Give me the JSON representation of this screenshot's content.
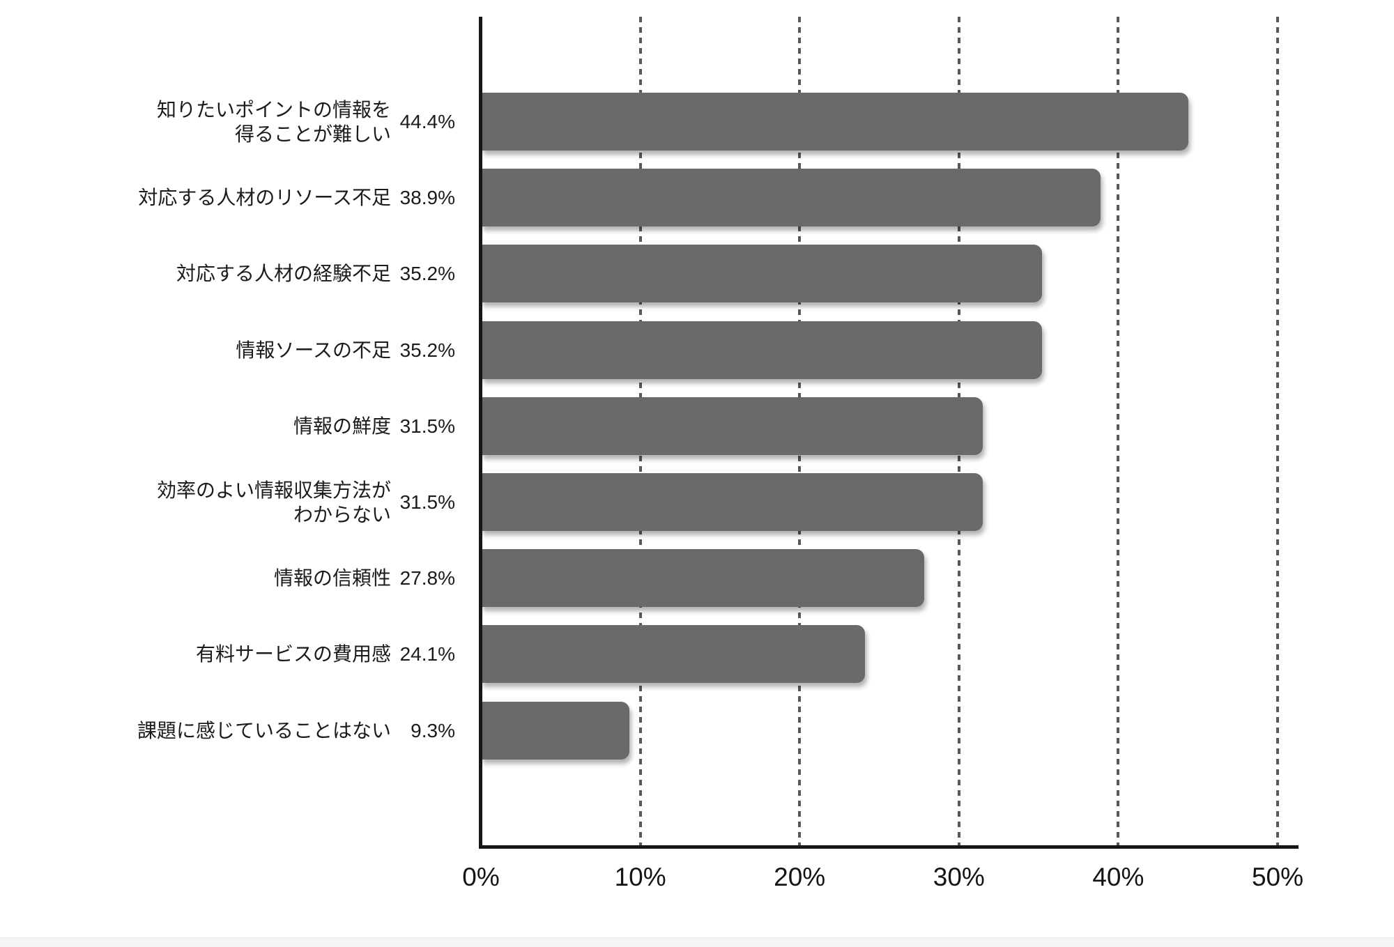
{
  "chart_data": {
    "type": "bar",
    "orientation": "horizontal",
    "title": "",
    "xlabel": "",
    "ylabel": "",
    "xlim": [
      0,
      50
    ],
    "grid": "vertical-dashed",
    "legend": "none",
    "bar_color": "#6a6a6a",
    "categories": [
      "知りたいポイントの情報を得ることが難しい",
      "対応する人材のリソース不足",
      "対応する人材の経験不足",
      "情報ソースの不足",
      "情報の鮮度",
      "効率のよい情報収集方法がわからない",
      "情報の信頼性",
      "有料サービスの費用感",
      "課題に感じていることはない"
    ],
    "categories_display": [
      "知りたいポイントの情報を\n得ることが難しい",
      "対応する人材のリソース不足",
      "対応する人材の経験不足",
      "情報ソースの不足",
      "情報の鮮度",
      "効率のよい情報収集方法が\nわからない",
      "情報の信頼性",
      "有料サービスの費用感",
      "課題に感じていることはない"
    ],
    "values": [
      44.4,
      38.9,
      35.2,
      35.2,
      31.5,
      31.5,
      27.8,
      24.1,
      9.3
    ],
    "value_labels": [
      "44.4%",
      "38.9%",
      "35.2%",
      "35.2%",
      "31.5%",
      "31.5%",
      "27.8%",
      "24.1%",
      "9.3%"
    ],
    "x_tick_values": [
      0,
      10,
      20,
      30,
      40,
      50
    ],
    "x_tick_labels": [
      "0%",
      "10%",
      "20%",
      "30%",
      "40%",
      "50%"
    ]
  },
  "colors": {
    "bar": "#6a6a6a",
    "axis": "#161616",
    "gridline": "#595959",
    "text": "#1b1b1d",
    "background": "#ffffff",
    "footer_strip": "#f5f5f6"
  }
}
